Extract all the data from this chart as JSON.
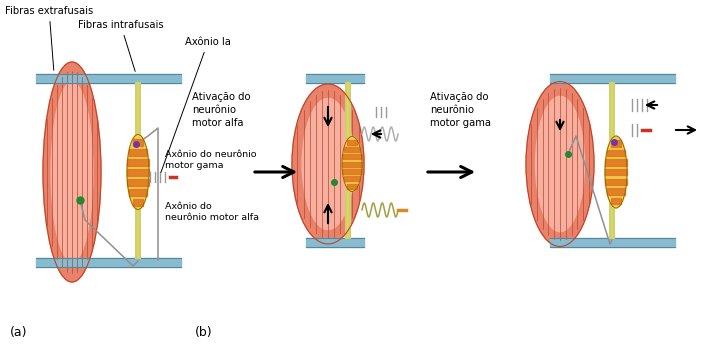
{
  "bg_color": "#ffffff",
  "panel_a_label": "(a)",
  "panel_b_label": "(b)",
  "label_fibras_extra": "Fibras extrafusais",
  "label_fibras_intra": "Fibras intrafusais",
  "label_axonio_ia": "Axônio Ia",
  "label_ativacao_alfa": "Ativação do\nneurônio\nmotor alfa",
  "label_axonio_gama": "Axônio do neurônio\nmotor gama",
  "label_axonio_alfa": "Axônio do\nneurônio motor alfa",
  "label_ativacao_gama": "Ativação do\nneurônio\nmotor gama",
  "muscle_outer": "#e8826a",
  "muscle_inner": "#f5b0a0",
  "muscle_line": "#c04428",
  "spindle_yellow": "#f0d050",
  "spindle_orange": "#e07820",
  "plate_color": "#88bbd0",
  "plate_edge": "#558899",
  "nerve_gray": "#909090",
  "nerve_olive": "#a0a050",
  "nerve_red": "#cc3322",
  "nerve_orange": "#dd8822",
  "synapse_purple": "#7733aa",
  "synapse_green": "#228833",
  "tick_gray": "#999999",
  "tick_red": "#cc4444",
  "wave_olive": "#a0a040",
  "wave_gray": "#b0b0b0"
}
